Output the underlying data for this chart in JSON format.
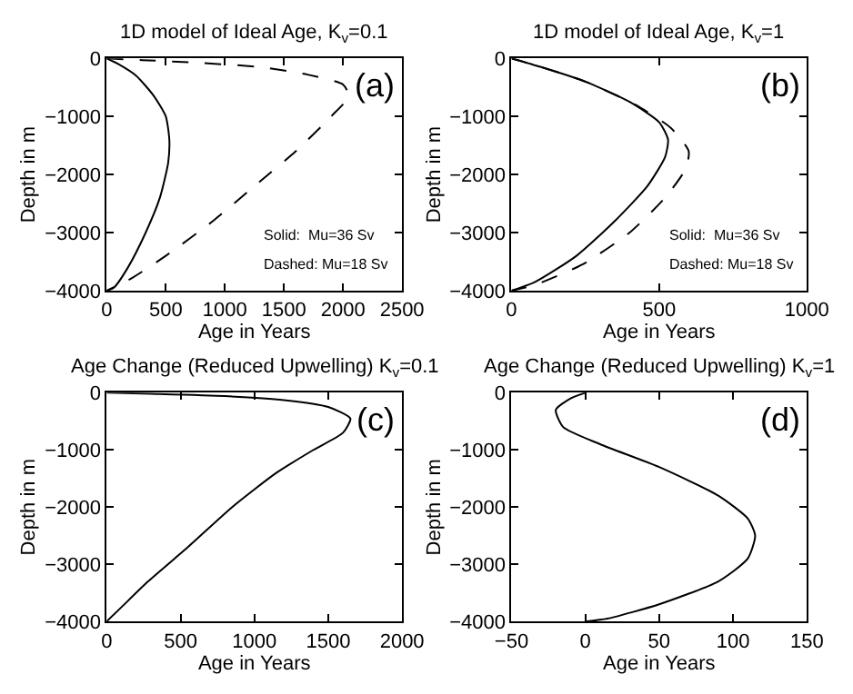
{
  "chart_data": [
    {
      "type": "line",
      "title": "1D model of Ideal Age, K$_{v}$=0.1",
      "xlabel": "Age in Years",
      "ylabel": "Depth in m",
      "xlim": [
        0,
        2500
      ],
      "xticks": [
        0,
        500,
        1000,
        1500,
        2000,
        2500
      ],
      "ylim": [
        -4000,
        0
      ],
      "yticks": [
        -4000,
        -3000,
        -2000,
        -1000,
        0
      ],
      "annotations": [
        "(a)",
        "Solid:  Mu=36 Sv",
        "Dashed: Mu=18 Sv"
      ],
      "series": [
        {
          "color": "#000000",
          "line_style": "solid",
          "x": [
            0,
            100,
            250,
            400,
            500,
            530,
            520,
            450,
            330,
            180,
            60,
            0
          ],
          "values": [
            0,
            -100,
            -300,
            -650,
            -1000,
            -1400,
            -1800,
            -2400,
            -3000,
            -3600,
            -3950,
            -4000
          ]
        },
        {
          "color": "#000000",
          "line_style": "dashed",
          "x": [
            0,
            300,
            800,
            1300,
            1700,
            2000,
            2050,
            1900,
            1600,
            1250,
            900,
            500,
            200,
            0
          ],
          "values": [
            0,
            -30,
            -80,
            -150,
            -280,
            -450,
            -650,
            -1000,
            -1600,
            -2200,
            -2800,
            -3400,
            -3800,
            -4000
          ]
        }
      ]
    },
    {
      "type": "line",
      "title": "1D model of Ideal Age, K$_{v}$=1",
      "xlabel": "Age in Years",
      "ylabel": "Depth in m",
      "xlim": [
        0,
        1000
      ],
      "xticks": [
        0,
        500,
        1000
      ],
      "ylim": [
        -4000,
        0
      ],
      "yticks": [
        -4000,
        -3000,
        -2000,
        -1000,
        0
      ],
      "annotations": [
        "(b)",
        "Solid:  Mu=36 Sv",
        "Dashed: Mu=18 Sv"
      ],
      "series": [
        {
          "color": "#000000",
          "line_style": "solid",
          "x": [
            0,
            100,
            250,
            400,
            500,
            530,
            520,
            460,
            350,
            220,
            80,
            0
          ],
          "values": [
            0,
            -150,
            -400,
            -750,
            -1100,
            -1400,
            -1700,
            -2200,
            -2800,
            -3400,
            -3850,
            -4000
          ]
        },
        {
          "color": "#000000",
          "line_style": "dashed",
          "x": [
            0,
            100,
            250,
            420,
            540,
            600,
            590,
            520,
            400,
            240,
            80,
            0
          ],
          "values": [
            0,
            -150,
            -400,
            -800,
            -1200,
            -1600,
            -1900,
            -2400,
            -3000,
            -3550,
            -3900,
            -4000
          ]
        }
      ]
    },
    {
      "type": "line",
      "title": "Age Change (Reduced Upwelling) K$_{v}$=0.1",
      "xlabel": "Age in Years",
      "ylabel": "Depth in m",
      "xlim": [
        0,
        2000
      ],
      "xticks": [
        0,
        500,
        1000,
        1500,
        2000
      ],
      "ylim": [
        -4000,
        0
      ],
      "yticks": [
        -4000,
        -3000,
        -2000,
        -1000,
        0
      ],
      "annotations": [
        "(c)"
      ],
      "series": [
        {
          "color": "#000000",
          "line_style": "solid",
          "x": [
            0,
            300,
            800,
            1200,
            1500,
            1650,
            1600,
            1400,
            1150,
            850,
            550,
            280,
            100,
            0
          ],
          "values": [
            0,
            -20,
            -60,
            -130,
            -250,
            -450,
            -700,
            -1000,
            -1400,
            -2000,
            -2700,
            -3300,
            -3750,
            -4000
          ]
        }
      ]
    },
    {
      "type": "line",
      "title": "Age Change (Reduced Upwelling) K$_{v}$=1",
      "xlabel": "Age in Years",
      "ylabel": "Depth in m",
      "xlim": [
        -50,
        150
      ],
      "xticks": [
        -50,
        0,
        50,
        100,
        150
      ],
      "ylim": [
        -4000,
        0
      ],
      "yticks": [
        -4000,
        -3000,
        -2000,
        -1000,
        0
      ],
      "annotations": [
        "(d)"
      ],
      "series": [
        {
          "color": "#000000",
          "line_style": "solid",
          "x": [
            0,
            -10,
            -20,
            -15,
            10,
            50,
            90,
            110,
            115,
            110,
            90,
            50,
            15,
            0
          ],
          "values": [
            0,
            -100,
            -300,
            -600,
            -900,
            -1300,
            -1800,
            -2200,
            -2500,
            -2900,
            -3300,
            -3700,
            -3950,
            -4000
          ]
        }
      ]
    }
  ]
}
